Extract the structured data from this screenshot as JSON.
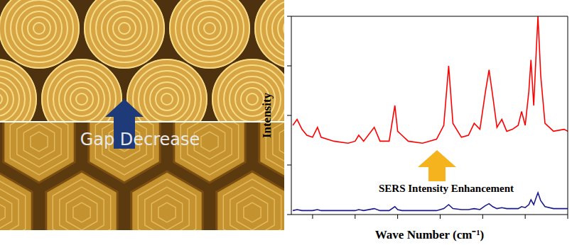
{
  "image_panel": {
    "label": "Gap Decrease"
  },
  "chart_data": {
    "type": "line",
    "x_label": "Wave Number (cm⁻¹)",
    "y_label": "Intensity",
    "annotation": "SERS Intensity Enhancement",
    "tick_labels": false,
    "xlim": [
      400,
      1700
    ],
    "ylim": [
      0,
      100
    ],
    "xticks": [
      500,
      700,
      900,
      1100,
      1300,
      1500,
      1700
    ],
    "yticks": [
      0,
      25,
      50,
      75,
      100
    ],
    "x": [
      407,
      427,
      450,
      473,
      500,
      523,
      540,
      600,
      667,
      700,
      717,
      740,
      790,
      817,
      860,
      887,
      900,
      920,
      950,
      1017,
      1083,
      1117,
      1140,
      1160,
      1200,
      1233,
      1260,
      1287,
      1313,
      1330,
      1347,
      1367,
      1390,
      1413,
      1440,
      1467,
      1483,
      1500,
      1517,
      1527,
      1540,
      1553,
      1560,
      1573,
      1593,
      1633,
      1683,
      1700
    ],
    "series": [
      {
        "color": "#ff0000",
        "values": [
          45,
          48,
          43,
          40,
          39,
          44,
          39,
          37,
          36,
          37,
          40,
          37,
          44,
          37,
          37,
          55,
          42,
          40,
          37,
          36,
          38,
          45,
          75,
          46,
          39,
          40,
          46,
          43,
          62,
          73,
          60,
          44,
          48,
          42,
          43,
          45,
          52,
          45,
          62,
          78,
          55,
          85,
          100,
          70,
          46,
          42,
          43,
          42
        ]
      },
      {
        "color": "#1a1a8c",
        "values": [
          2,
          2.5,
          2,
          2,
          2,
          2.5,
          2,
          2,
          2,
          2,
          2.5,
          2,
          3,
          2,
          2,
          4,
          2.5,
          2,
          2,
          2,
          2,
          3,
          5,
          3,
          2.5,
          2.5,
          3,
          2.5,
          4.5,
          5.5,
          4,
          3,
          3.5,
          3,
          3,
          3,
          4,
          3.5,
          5,
          7.5,
          5,
          9,
          11,
          7,
          4,
          3,
          3,
          3
        ]
      }
    ]
  }
}
